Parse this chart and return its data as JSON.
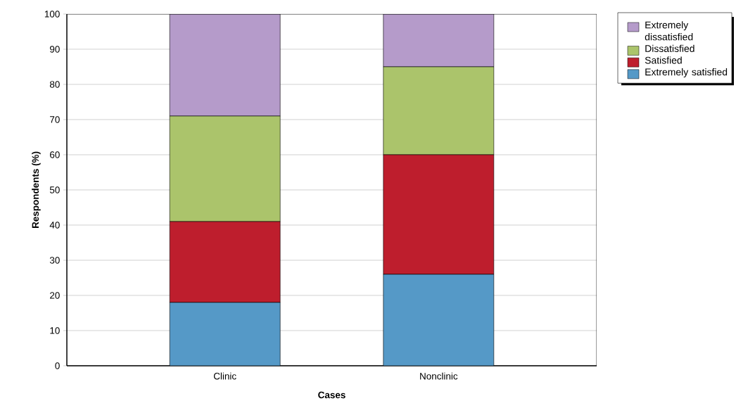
{
  "chart_data": {
    "type": "bar",
    "stacked": true,
    "xlabel": "Cases",
    "ylabel": "Respondents (%)",
    "categories": [
      "Clinic",
      "Nonclinic"
    ],
    "series": [
      {
        "name": "Extremely satisfied",
        "color": "#5599c7",
        "values": [
          18,
          26
        ]
      },
      {
        "name": "Satisfied",
        "color": "#be1e2d",
        "values": [
          23,
          34
        ]
      },
      {
        "name": "Dissatisfied",
        "color": "#abc46b",
        "values": [
          30,
          25
        ]
      },
      {
        "name": "Extremely dissatisfied",
        "color": "#b59bca",
        "values": [
          29,
          15
        ]
      }
    ],
    "ylim": [
      0,
      100
    ],
    "yticks": [
      0,
      10,
      20,
      30,
      40,
      50,
      60,
      70,
      80,
      90,
      100
    ],
    "grid": "y",
    "legend": "top right"
  }
}
